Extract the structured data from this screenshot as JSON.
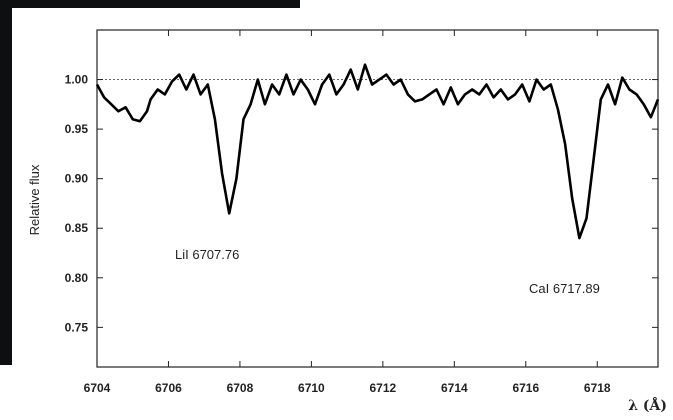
{
  "chart_data": {
    "type": "line",
    "title": "",
    "xlabel": "λ (Å)",
    "ylabel": "Relative flux",
    "xlim": [
      6704,
      6719.7
    ],
    "ylim": [
      0.71,
      1.05
    ],
    "xticks": [
      6704,
      6706,
      6708,
      6710,
      6712,
      6714,
      6716,
      6718
    ],
    "yticks": [
      0.75,
      0.8,
      0.85,
      0.9,
      0.95,
      1.0
    ],
    "xtick_labels": [
      "6704",
      "6706",
      "6708",
      "6710",
      "6712",
      "6714",
      "6716",
      "6718"
    ],
    "ytick_labels": [
      "0.75",
      "0.80",
      "0.85",
      "0.90",
      "0.95",
      "1.00"
    ],
    "reference_line": {
      "y": 1.0,
      "style": "dotted"
    },
    "grid": false,
    "series": [
      {
        "x": [
          6704.0,
          6704.2,
          6704.4,
          6704.6,
          6704.8,
          6705.0,
          6705.2,
          6705.4,
          6705.5,
          6705.7,
          6705.9,
          6706.1,
          6706.3,
          6706.5,
          6706.7,
          6706.9,
          6707.1,
          6707.3,
          6707.5,
          6707.7,
          6707.9,
          6708.1,
          6708.3,
          6708.5,
          6708.7,
          6708.9,
          6709.1,
          6709.3,
          6709.5,
          6709.7,
          6709.9,
          6710.1,
          6710.3,
          6710.5,
          6710.7,
          6710.9,
          6711.1,
          6711.3,
          6711.5,
          6711.7,
          6711.9,
          6712.1,
          6712.3,
          6712.5,
          6712.7,
          6712.9,
          6713.1,
          6713.3,
          6713.5,
          6713.7,
          6713.9,
          6714.1,
          6714.3,
          6714.5,
          6714.7,
          6714.9,
          6715.1,
          6715.3,
          6715.5,
          6715.7,
          6715.9,
          6716.1,
          6716.3,
          6716.5,
          6716.7,
          6716.9,
          6717.1,
          6717.3,
          6717.5,
          6717.7,
          6717.9,
          6718.1,
          6718.3,
          6718.5,
          6718.7,
          6718.9,
          6719.1,
          6719.3,
          6719.5,
          6719.7
        ],
        "values": [
          0.995,
          0.982,
          0.975,
          0.968,
          0.972,
          0.96,
          0.958,
          0.968,
          0.98,
          0.99,
          0.985,
          0.998,
          1.005,
          0.99,
          1.005,
          0.985,
          0.995,
          0.96,
          0.905,
          0.865,
          0.9,
          0.96,
          0.975,
          1.0,
          0.975,
          0.995,
          0.985,
          1.005,
          0.985,
          1.0,
          0.99,
          0.975,
          0.995,
          1.005,
          0.985,
          0.995,
          1.01,
          0.99,
          1.015,
          0.995,
          1.0,
          1.005,
          0.995,
          1.0,
          0.985,
          0.978,
          0.98,
          0.985,
          0.99,
          0.975,
          0.992,
          0.975,
          0.985,
          0.99,
          0.985,
          0.995,
          0.982,
          0.99,
          0.98,
          0.985,
          0.995,
          0.978,
          1.0,
          0.99,
          0.995,
          0.97,
          0.935,
          0.88,
          0.84,
          0.86,
          0.92,
          0.98,
          0.995,
          0.975,
          1.002,
          0.99,
          0.985,
          0.975,
          0.962,
          0.98
        ]
      }
    ],
    "annotations": [
      {
        "text": "LiI  6707.76"
      },
      {
        "text": "CaI 6717.89"
      }
    ]
  }
}
